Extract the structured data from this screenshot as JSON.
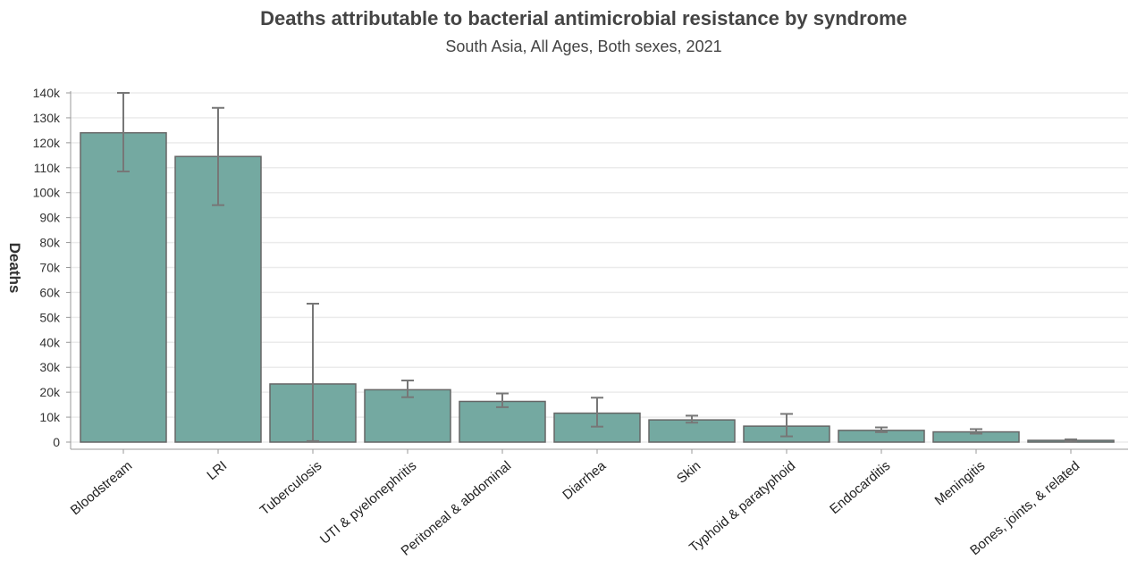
{
  "chart_data": {
    "type": "bar",
    "title": "Deaths attributable to bacterial antimicrobial resistance by syndrome",
    "subtitle": "South Asia, All Ages, Both sexes, 2021",
    "ylabel": "Deaths",
    "xlabel": "",
    "ylim": [
      0,
      140000
    ],
    "yticks": [
      {
        "value": 0,
        "label": "0"
      },
      {
        "value": 10000,
        "label": "10k"
      },
      {
        "value": 20000,
        "label": "20k"
      },
      {
        "value": 30000,
        "label": "30k"
      },
      {
        "value": 40000,
        "label": "40k"
      },
      {
        "value": 50000,
        "label": "50k"
      },
      {
        "value": 60000,
        "label": "60k"
      },
      {
        "value": 70000,
        "label": "70k"
      },
      {
        "value": 80000,
        "label": "80k"
      },
      {
        "value": 90000,
        "label": "90k"
      },
      {
        "value": 100000,
        "label": "100k"
      },
      {
        "value": 110000,
        "label": "110k"
      },
      {
        "value": 120000,
        "label": "120k"
      },
      {
        "value": 130000,
        "label": "130k"
      },
      {
        "value": 140000,
        "label": "140k"
      }
    ],
    "grid": true,
    "legend": "none",
    "bar_color": "#74a9a1",
    "error_color": "#777777",
    "categories": [
      "Bloodstream",
      "LRI",
      "Tuberculosis",
      "UTI & pyelonephritis",
      "Peritoneal & abdominal",
      "Diarrhea",
      "Skin",
      "Typhoid & paratyphoid",
      "Endocarditis",
      "Meningitis",
      "Bones, joints, & related"
    ],
    "values": [
      124000,
      114500,
      23300,
      21000,
      16300,
      11600,
      8900,
      6400,
      4700,
      4100,
      700
    ],
    "lower": [
      108500,
      95000,
      400,
      18000,
      14000,
      6200,
      7800,
      2300,
      4000,
      3400,
      300
    ],
    "upper": [
      140000,
      134000,
      55500,
      24700,
      19500,
      17800,
      10600,
      11300,
      5900,
      5200,
      1100
    ]
  }
}
